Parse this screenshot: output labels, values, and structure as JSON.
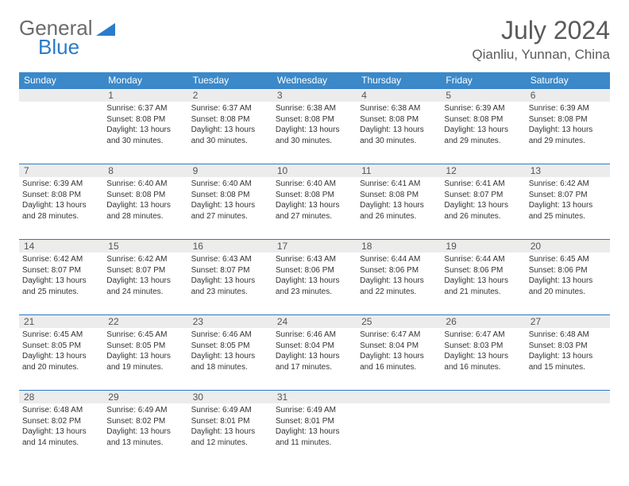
{
  "logo": {
    "text1": "General",
    "text2": "Blue"
  },
  "title": "July 2024",
  "location": "Qianliu, Yunnan, China",
  "colors": {
    "header_bg": "#3b89c9",
    "header_text": "#ffffff",
    "daynum_bg": "#ececec",
    "border": "#2c7ac9",
    "body_text": "#333333",
    "title_text": "#5a5a5a",
    "logo_gray": "#6b6b6b",
    "logo_blue": "#2c7ac9"
  },
  "day_names": [
    "Sunday",
    "Monday",
    "Tuesday",
    "Wednesday",
    "Thursday",
    "Friday",
    "Saturday"
  ],
  "weeks": [
    [
      {
        "n": "",
        "lines": []
      },
      {
        "n": "1",
        "lines": [
          "Sunrise: 6:37 AM",
          "Sunset: 8:08 PM",
          "Daylight: 13 hours",
          "and 30 minutes."
        ]
      },
      {
        "n": "2",
        "lines": [
          "Sunrise: 6:37 AM",
          "Sunset: 8:08 PM",
          "Daylight: 13 hours",
          "and 30 minutes."
        ]
      },
      {
        "n": "3",
        "lines": [
          "Sunrise: 6:38 AM",
          "Sunset: 8:08 PM",
          "Daylight: 13 hours",
          "and 30 minutes."
        ]
      },
      {
        "n": "4",
        "lines": [
          "Sunrise: 6:38 AM",
          "Sunset: 8:08 PM",
          "Daylight: 13 hours",
          "and 30 minutes."
        ]
      },
      {
        "n": "5",
        "lines": [
          "Sunrise: 6:39 AM",
          "Sunset: 8:08 PM",
          "Daylight: 13 hours",
          "and 29 minutes."
        ]
      },
      {
        "n": "6",
        "lines": [
          "Sunrise: 6:39 AM",
          "Sunset: 8:08 PM",
          "Daylight: 13 hours",
          "and 29 minutes."
        ]
      }
    ],
    [
      {
        "n": "7",
        "lines": [
          "Sunrise: 6:39 AM",
          "Sunset: 8:08 PM",
          "Daylight: 13 hours",
          "and 28 minutes."
        ]
      },
      {
        "n": "8",
        "lines": [
          "Sunrise: 6:40 AM",
          "Sunset: 8:08 PM",
          "Daylight: 13 hours",
          "and 28 minutes."
        ]
      },
      {
        "n": "9",
        "lines": [
          "Sunrise: 6:40 AM",
          "Sunset: 8:08 PM",
          "Daylight: 13 hours",
          "and 27 minutes."
        ]
      },
      {
        "n": "10",
        "lines": [
          "Sunrise: 6:40 AM",
          "Sunset: 8:08 PM",
          "Daylight: 13 hours",
          "and 27 minutes."
        ]
      },
      {
        "n": "11",
        "lines": [
          "Sunrise: 6:41 AM",
          "Sunset: 8:08 PM",
          "Daylight: 13 hours",
          "and 26 minutes."
        ]
      },
      {
        "n": "12",
        "lines": [
          "Sunrise: 6:41 AM",
          "Sunset: 8:07 PM",
          "Daylight: 13 hours",
          "and 26 minutes."
        ]
      },
      {
        "n": "13",
        "lines": [
          "Sunrise: 6:42 AM",
          "Sunset: 8:07 PM",
          "Daylight: 13 hours",
          "and 25 minutes."
        ]
      }
    ],
    [
      {
        "n": "14",
        "lines": [
          "Sunrise: 6:42 AM",
          "Sunset: 8:07 PM",
          "Daylight: 13 hours",
          "and 25 minutes."
        ]
      },
      {
        "n": "15",
        "lines": [
          "Sunrise: 6:42 AM",
          "Sunset: 8:07 PM",
          "Daylight: 13 hours",
          "and 24 minutes."
        ]
      },
      {
        "n": "16",
        "lines": [
          "Sunrise: 6:43 AM",
          "Sunset: 8:07 PM",
          "Daylight: 13 hours",
          "and 23 minutes."
        ]
      },
      {
        "n": "17",
        "lines": [
          "Sunrise: 6:43 AM",
          "Sunset: 8:06 PM",
          "Daylight: 13 hours",
          "and 23 minutes."
        ]
      },
      {
        "n": "18",
        "lines": [
          "Sunrise: 6:44 AM",
          "Sunset: 8:06 PM",
          "Daylight: 13 hours",
          "and 22 minutes."
        ]
      },
      {
        "n": "19",
        "lines": [
          "Sunrise: 6:44 AM",
          "Sunset: 8:06 PM",
          "Daylight: 13 hours",
          "and 21 minutes."
        ]
      },
      {
        "n": "20",
        "lines": [
          "Sunrise: 6:45 AM",
          "Sunset: 8:06 PM",
          "Daylight: 13 hours",
          "and 20 minutes."
        ]
      }
    ],
    [
      {
        "n": "21",
        "lines": [
          "Sunrise: 6:45 AM",
          "Sunset: 8:05 PM",
          "Daylight: 13 hours",
          "and 20 minutes."
        ]
      },
      {
        "n": "22",
        "lines": [
          "Sunrise: 6:45 AM",
          "Sunset: 8:05 PM",
          "Daylight: 13 hours",
          "and 19 minutes."
        ]
      },
      {
        "n": "23",
        "lines": [
          "Sunrise: 6:46 AM",
          "Sunset: 8:05 PM",
          "Daylight: 13 hours",
          "and 18 minutes."
        ]
      },
      {
        "n": "24",
        "lines": [
          "Sunrise: 6:46 AM",
          "Sunset: 8:04 PM",
          "Daylight: 13 hours",
          "and 17 minutes."
        ]
      },
      {
        "n": "25",
        "lines": [
          "Sunrise: 6:47 AM",
          "Sunset: 8:04 PM",
          "Daylight: 13 hours",
          "and 16 minutes."
        ]
      },
      {
        "n": "26",
        "lines": [
          "Sunrise: 6:47 AM",
          "Sunset: 8:03 PM",
          "Daylight: 13 hours",
          "and 16 minutes."
        ]
      },
      {
        "n": "27",
        "lines": [
          "Sunrise: 6:48 AM",
          "Sunset: 8:03 PM",
          "Daylight: 13 hours",
          "and 15 minutes."
        ]
      }
    ],
    [
      {
        "n": "28",
        "lines": [
          "Sunrise: 6:48 AM",
          "Sunset: 8:02 PM",
          "Daylight: 13 hours",
          "and 14 minutes."
        ]
      },
      {
        "n": "29",
        "lines": [
          "Sunrise: 6:49 AM",
          "Sunset: 8:02 PM",
          "Daylight: 13 hours",
          "and 13 minutes."
        ]
      },
      {
        "n": "30",
        "lines": [
          "Sunrise: 6:49 AM",
          "Sunset: 8:01 PM",
          "Daylight: 13 hours",
          "and 12 minutes."
        ]
      },
      {
        "n": "31",
        "lines": [
          "Sunrise: 6:49 AM",
          "Sunset: 8:01 PM",
          "Daylight: 13 hours",
          "and 11 minutes."
        ]
      },
      {
        "n": "",
        "lines": []
      },
      {
        "n": "",
        "lines": []
      },
      {
        "n": "",
        "lines": []
      }
    ]
  ]
}
